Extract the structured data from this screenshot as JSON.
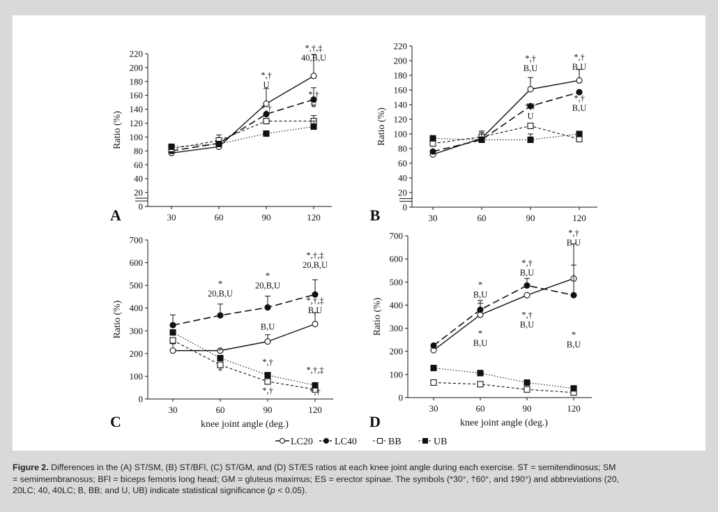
{
  "caption": {
    "label": "Figure 2.",
    "line1": " Differences in the (A) ST/SM, (B) ST/BFl, (C) ST/GM, and (D) ST/ES ratios at each knee joint angle during each exercise. ST = semitendinosus; SM",
    "line2": "= semimembranosus; BFl = biceps femoris long head; GM = gluteus maximus; ES = erector spinae. The symbols (*30°, †60°, and ‡90°) and abbreviations (20,",
    "line3a": "20LC; 40, 40LC; B, BB; and U, UB) indicate statistical significance (",
    "line3p": "p",
    "line3b": " < 0.05)."
  },
  "legend": [
    "LC20",
    "LC40",
    "BB",
    "UB"
  ],
  "chart_data": [
    {
      "type": "line",
      "panel": "A",
      "ylabel": "Ratio (%)",
      "xlabel": "",
      "x": [
        30,
        60,
        90,
        120
      ],
      "ylim": [
        0,
        220
      ],
      "yticks": [
        0,
        20,
        40,
        60,
        80,
        100,
        120,
        140,
        160,
        180,
        200,
        220
      ],
      "axis_break": true,
      "series": [
        {
          "name": "LC20",
          "values": [
            77,
            86,
            148,
            188
          ],
          "err": [
            0,
            0,
            22,
            31
          ]
        },
        {
          "name": "LC40",
          "values": [
            80,
            91,
            133,
            154
          ],
          "err": [
            0,
            0,
            0,
            17
          ]
        },
        {
          "name": "BB",
          "values": [
            83,
            95,
            123,
            123
          ],
          "err": [
            0,
            8,
            0,
            8
          ]
        },
        {
          "name": "UB",
          "values": [
            86,
            90,
            105,
            115
          ],
          "err": [
            0,
            0,
            0,
            8
          ]
        }
      ],
      "annotations": [
        {
          "x": 90,
          "y": 185,
          "lines": [
            "*,†",
            "U"
          ]
        },
        {
          "x": 120,
          "y": 224,
          "lines": [
            "*,†,‡",
            "40,B,U"
          ]
        },
        {
          "x": 120,
          "y": 157,
          "lines": [
            "*,†",
            "U"
          ]
        },
        {
          "x": 90,
          "y": 137,
          "lines": [
            "*,†"
          ]
        },
        {
          "x": 90,
          "y": 125,
          "lines": [
            "*"
          ]
        },
        {
          "x": 120,
          "y": 139,
          "lines": [
            "*"
          ]
        }
      ]
    },
    {
      "type": "line",
      "panel": "B",
      "ylabel": "Ratio (%)",
      "xlabel": "",
      "x": [
        30,
        60,
        90,
        120
      ],
      "ylim": [
        0,
        220
      ],
      "yticks": [
        0,
        20,
        40,
        60,
        80,
        100,
        120,
        140,
        160,
        180,
        200,
        220
      ],
      "axis_break": true,
      "series": [
        {
          "name": "LC20",
          "values": [
            72,
            94,
            161,
            173
          ],
          "err": [
            0,
            0,
            16,
            15
          ]
        },
        {
          "name": "LC40",
          "values": [
            76,
            92,
            138,
            157
          ],
          "err": [
            0,
            0,
            0,
            0
          ]
        },
        {
          "name": "BB",
          "values": [
            87,
            96,
            111,
            93
          ],
          "err": [
            0,
            8,
            0,
            10
          ]
        },
        {
          "name": "UB",
          "values": [
            94,
            92,
            92,
            100
          ],
          "err": [
            0,
            10,
            8,
            0
          ]
        }
      ],
      "annotations": [
        {
          "x": 90,
          "y": 199,
          "lines": [
            "*,†",
            "B,U"
          ]
        },
        {
          "x": 120,
          "y": 201,
          "lines": [
            "*,†",
            "B,U"
          ]
        },
        {
          "x": 90,
          "y": 134,
          "lines": [
            "*,†",
            "U"
          ]
        },
        {
          "x": 120,
          "y": 145,
          "lines": [
            "*,†",
            "B,U"
          ]
        }
      ]
    },
    {
      "type": "line",
      "panel": "C",
      "ylabel": "Ratio (%)",
      "xlabel": "knee joint angle (deg.)",
      "x": [
        30,
        60,
        90,
        120
      ],
      "ylim": [
        0,
        700
      ],
      "yticks": [
        0,
        100,
        200,
        300,
        400,
        500,
        600,
        700
      ],
      "series": [
        {
          "name": "LC20",
          "values": [
            213,
            213,
            253,
            330
          ],
          "err": [
            30,
            0,
            30,
            50
          ]
        },
        {
          "name": "LC40",
          "values": [
            325,
            368,
            403,
            460
          ],
          "err": [
            45,
            50,
            50,
            65
          ]
        },
        {
          "name": "BB",
          "values": [
            258,
            150,
            77,
            42
          ],
          "err": [
            0,
            0,
            0,
            0
          ]
        },
        {
          "name": "UB",
          "values": [
            293,
            180,
            105,
            60
          ],
          "err": [
            0,
            0,
            0,
            0
          ]
        }
      ],
      "annotations": [
        {
          "x": 60,
          "y": 495,
          "lines": [
            "*",
            "20,B,U"
          ]
        },
        {
          "x": 90,
          "y": 530,
          "lines": [
            "*",
            "20,B,U"
          ]
        },
        {
          "x": 120,
          "y": 620,
          "lines": [
            "*,†,‡",
            "20,B,U"
          ]
        },
        {
          "x": 120,
          "y": 420,
          "lines": [
            "*,†,‡",
            "B,U"
          ]
        },
        {
          "x": 90,
          "y": 305,
          "lines": [
            "B,U"
          ]
        },
        {
          "x": 90,
          "y": 150,
          "lines": [
            "*,†"
          ]
        },
        {
          "x": 120,
          "y": 115,
          "lines": [
            "*,†,‡"
          ]
        },
        {
          "x": 90,
          "y": 25,
          "lines": [
            "*,†"
          ]
        },
        {
          "x": 120,
          "y": 20,
          "lines": [
            "*,†"
          ]
        },
        {
          "x": 60,
          "y": 200,
          "lines": [
            "*"
          ]
        },
        {
          "x": 60,
          "y": 110,
          "lines": [
            "*"
          ]
        }
      ]
    },
    {
      "type": "line",
      "panel": "D",
      "ylabel": "Ratio (%)",
      "xlabel": "knee joint angle (deg.)",
      "x": [
        30,
        60,
        90,
        120
      ],
      "ylim": [
        0,
        700
      ],
      "yticks": [
        0,
        100,
        200,
        300,
        400,
        500,
        600,
        700
      ],
      "series": [
        {
          "name": "LC20",
          "values": [
            205,
            358,
            443,
            515
          ],
          "err": [
            0,
            50,
            0,
            150
          ]
        },
        {
          "name": "LC40",
          "values": [
            225,
            380,
            485,
            443
          ],
          "err": [
            0,
            40,
            30,
            130
          ]
        },
        {
          "name": "BB",
          "values": [
            65,
            58,
            35,
            22
          ],
          "err": [
            0,
            0,
            0,
            0
          ]
        },
        {
          "name": "UB",
          "values": [
            128,
            106,
            65,
            40
          ],
          "err": [
            0,
            0,
            0,
            0
          ]
        }
      ],
      "annotations": [
        {
          "x": 60,
          "y": 475,
          "lines": [
            "*",
            "B,U"
          ]
        },
        {
          "x": 90,
          "y": 570,
          "lines": [
            "*,†",
            "B,U"
          ]
        },
        {
          "x": 120,
          "y": 700,
          "lines": [
            "*,†",
            "B,U"
          ]
        },
        {
          "x": 60,
          "y": 265,
          "lines": [
            "*",
            "B,U"
          ]
        },
        {
          "x": 90,
          "y": 345,
          "lines": [
            "*,†",
            "B,U"
          ]
        },
        {
          "x": 120,
          "y": 260,
          "lines": [
            "*",
            "B,U"
          ]
        }
      ]
    }
  ]
}
